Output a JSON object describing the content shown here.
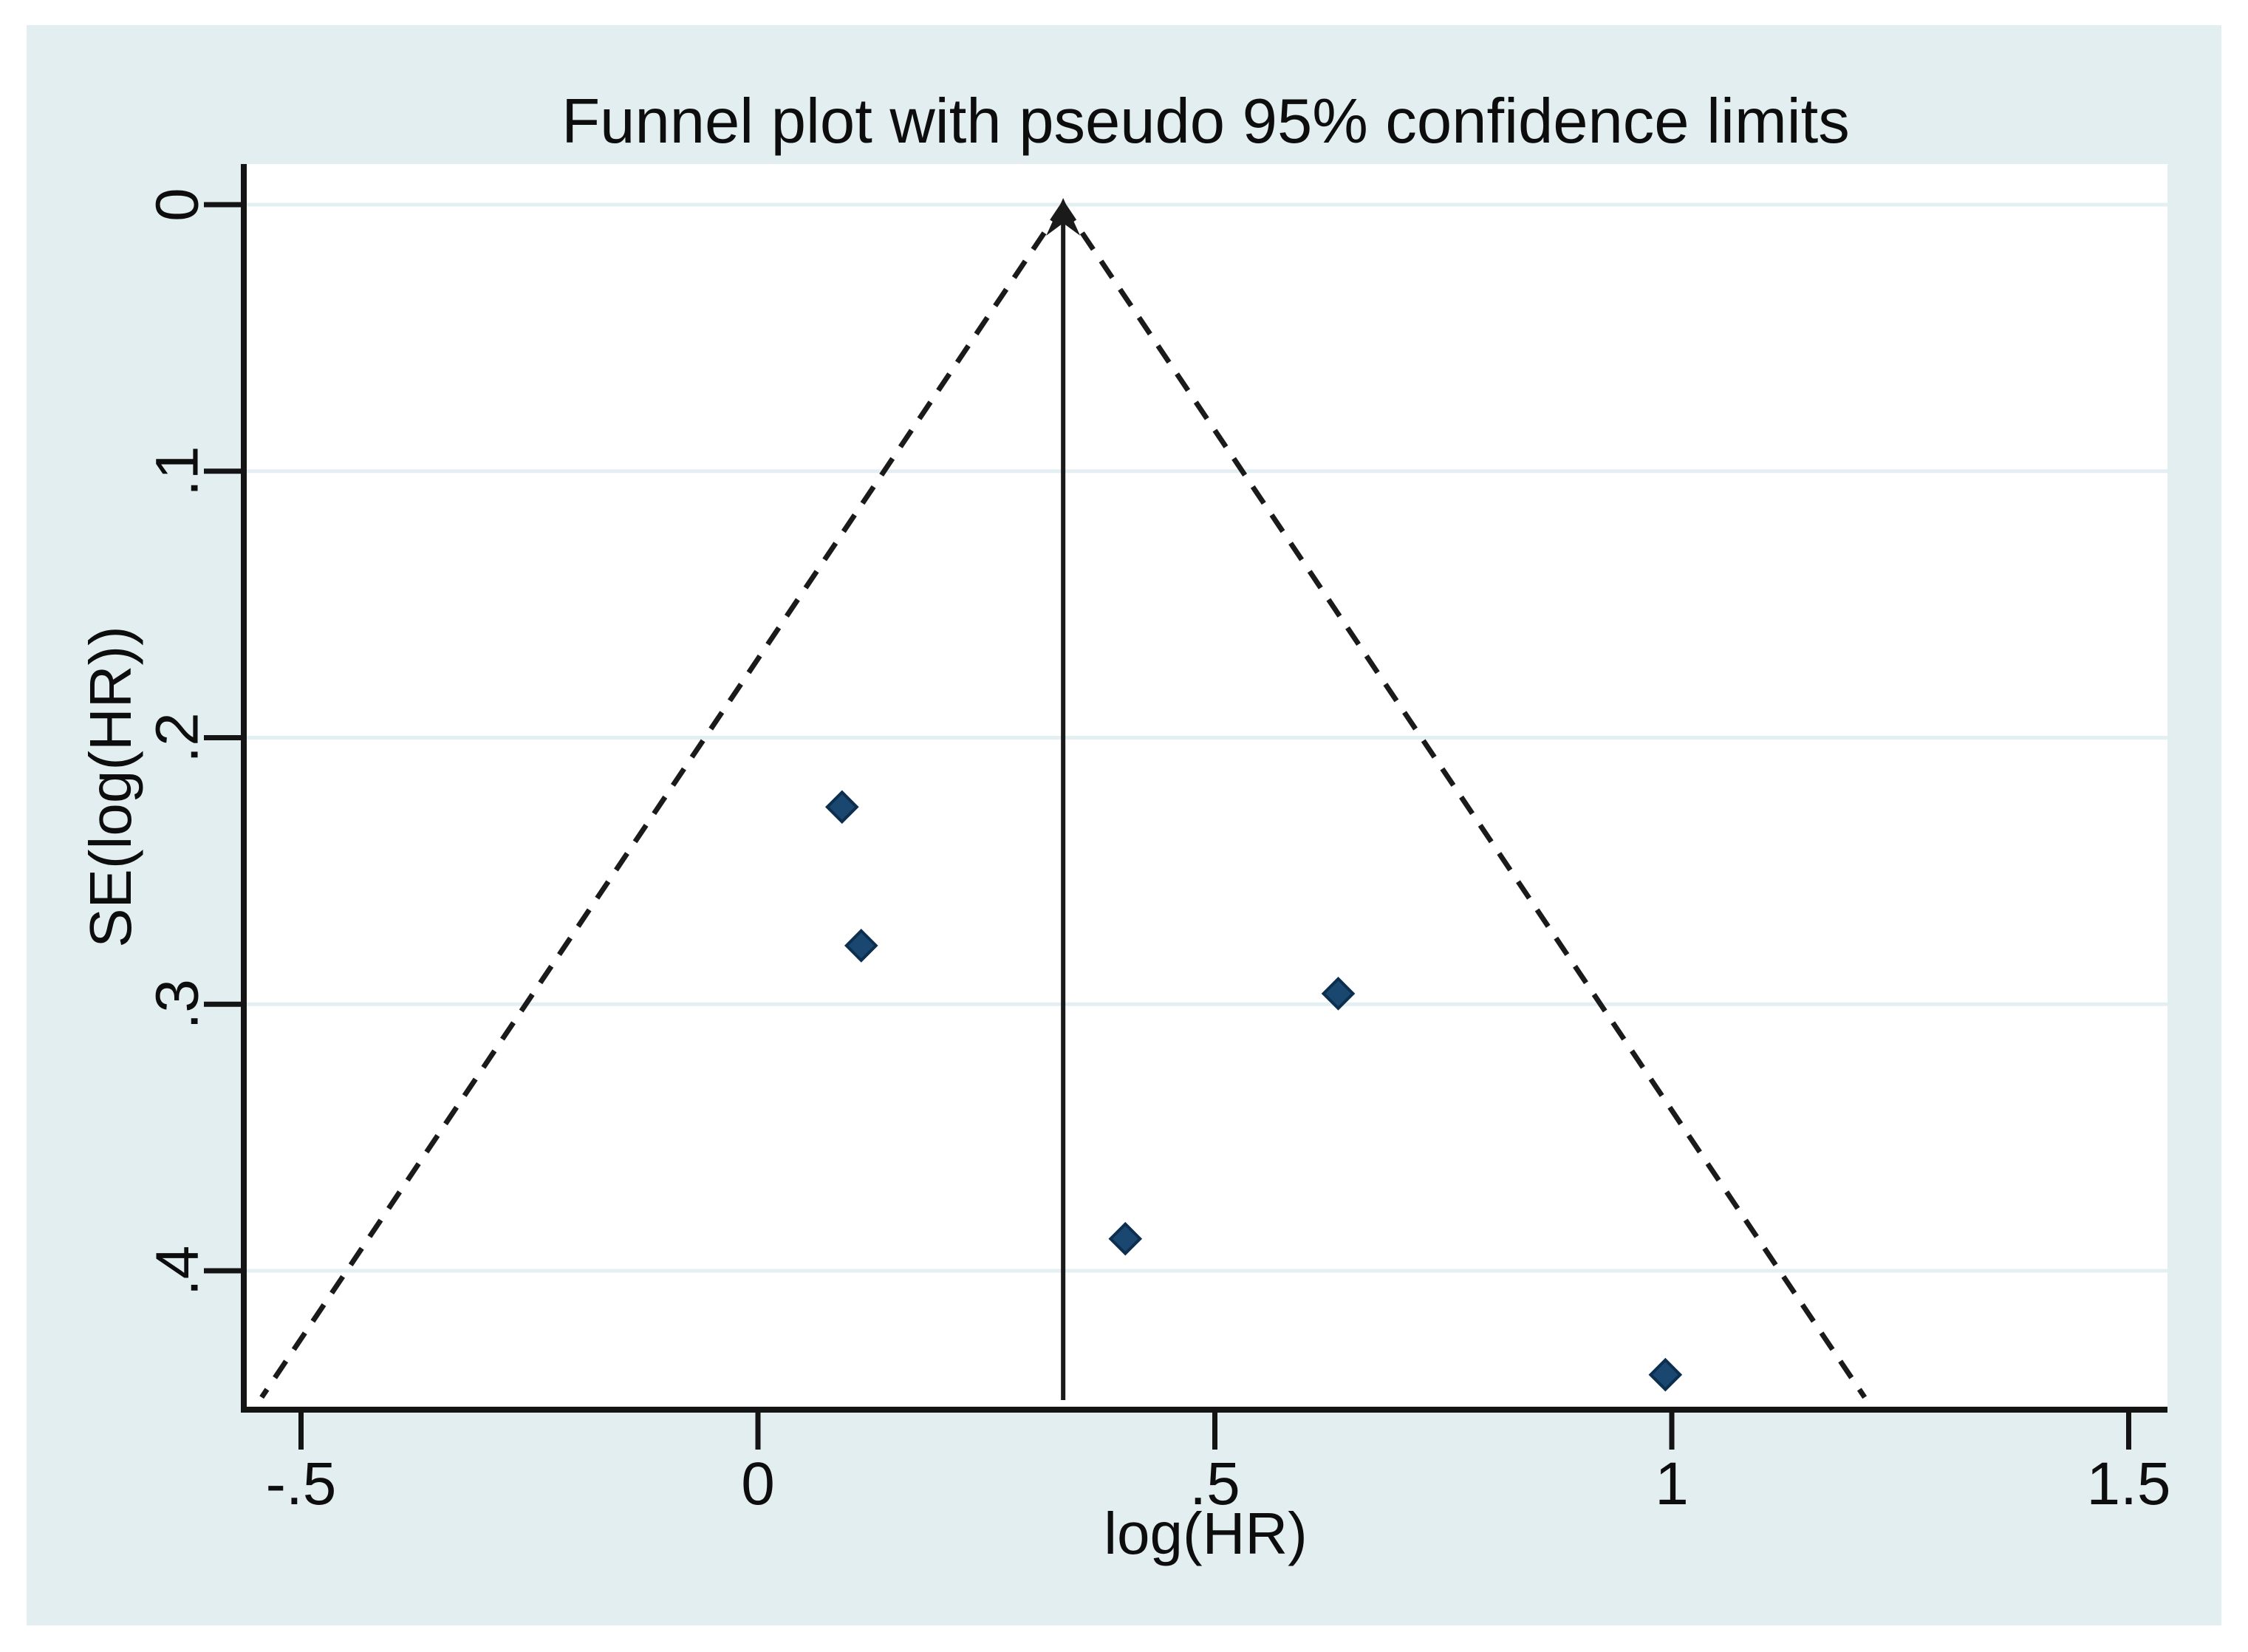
{
  "chart_data": {
    "type": "scatter",
    "subtype": "funnel-plot",
    "title": "Funnel plot with pseudo 95% confidence limits",
    "xlabel": "log(HR)",
    "ylabel": "SE(log(HR))",
    "x_ticks": [
      -0.5,
      0,
      0.5,
      1,
      1.5
    ],
    "x_tick_labels": [
      "-.5",
      "0",
      ".5",
      "1",
      "1.5"
    ],
    "y_ticks": [
      0,
      0.1,
      0.2,
      0.3,
      0.4
    ],
    "y_tick_labels": [
      "0",
      ".1",
      ".2",
      ".3",
      ".4"
    ],
    "xlim": [
      -0.563,
      1.543
    ],
    "ylim": [
      -0.015,
      0.452
    ],
    "y_axis_inverted": true,
    "grid": "horizontal",
    "legend": "none",
    "points": [
      {
        "x": 0.092,
        "se": 0.226
      },
      {
        "x": 0.113,
        "se": 0.278
      },
      {
        "x": 0.635,
        "se": 0.296
      },
      {
        "x": 0.402,
        "se": 0.388
      },
      {
        "x": 0.993,
        "se": 0.439
      }
    ],
    "pooled_estimate_x": 0.334,
    "funnel": {
      "apex_x": 0.334,
      "apex_se": 0,
      "z": 1.96,
      "end_se": 0.4475,
      "style": "dashed"
    },
    "colors": {
      "figure_background": "#e2eef0",
      "plot_background": "#ffffff",
      "gridline": "#e4eff4",
      "axis": "#141414",
      "text": "#0d0d0d",
      "marker_fill": "#1a476f",
      "marker_stroke": "#0d2f4f",
      "funnel_line": "#1a1a1a",
      "pooled_line": "#1a1a1a"
    }
  }
}
